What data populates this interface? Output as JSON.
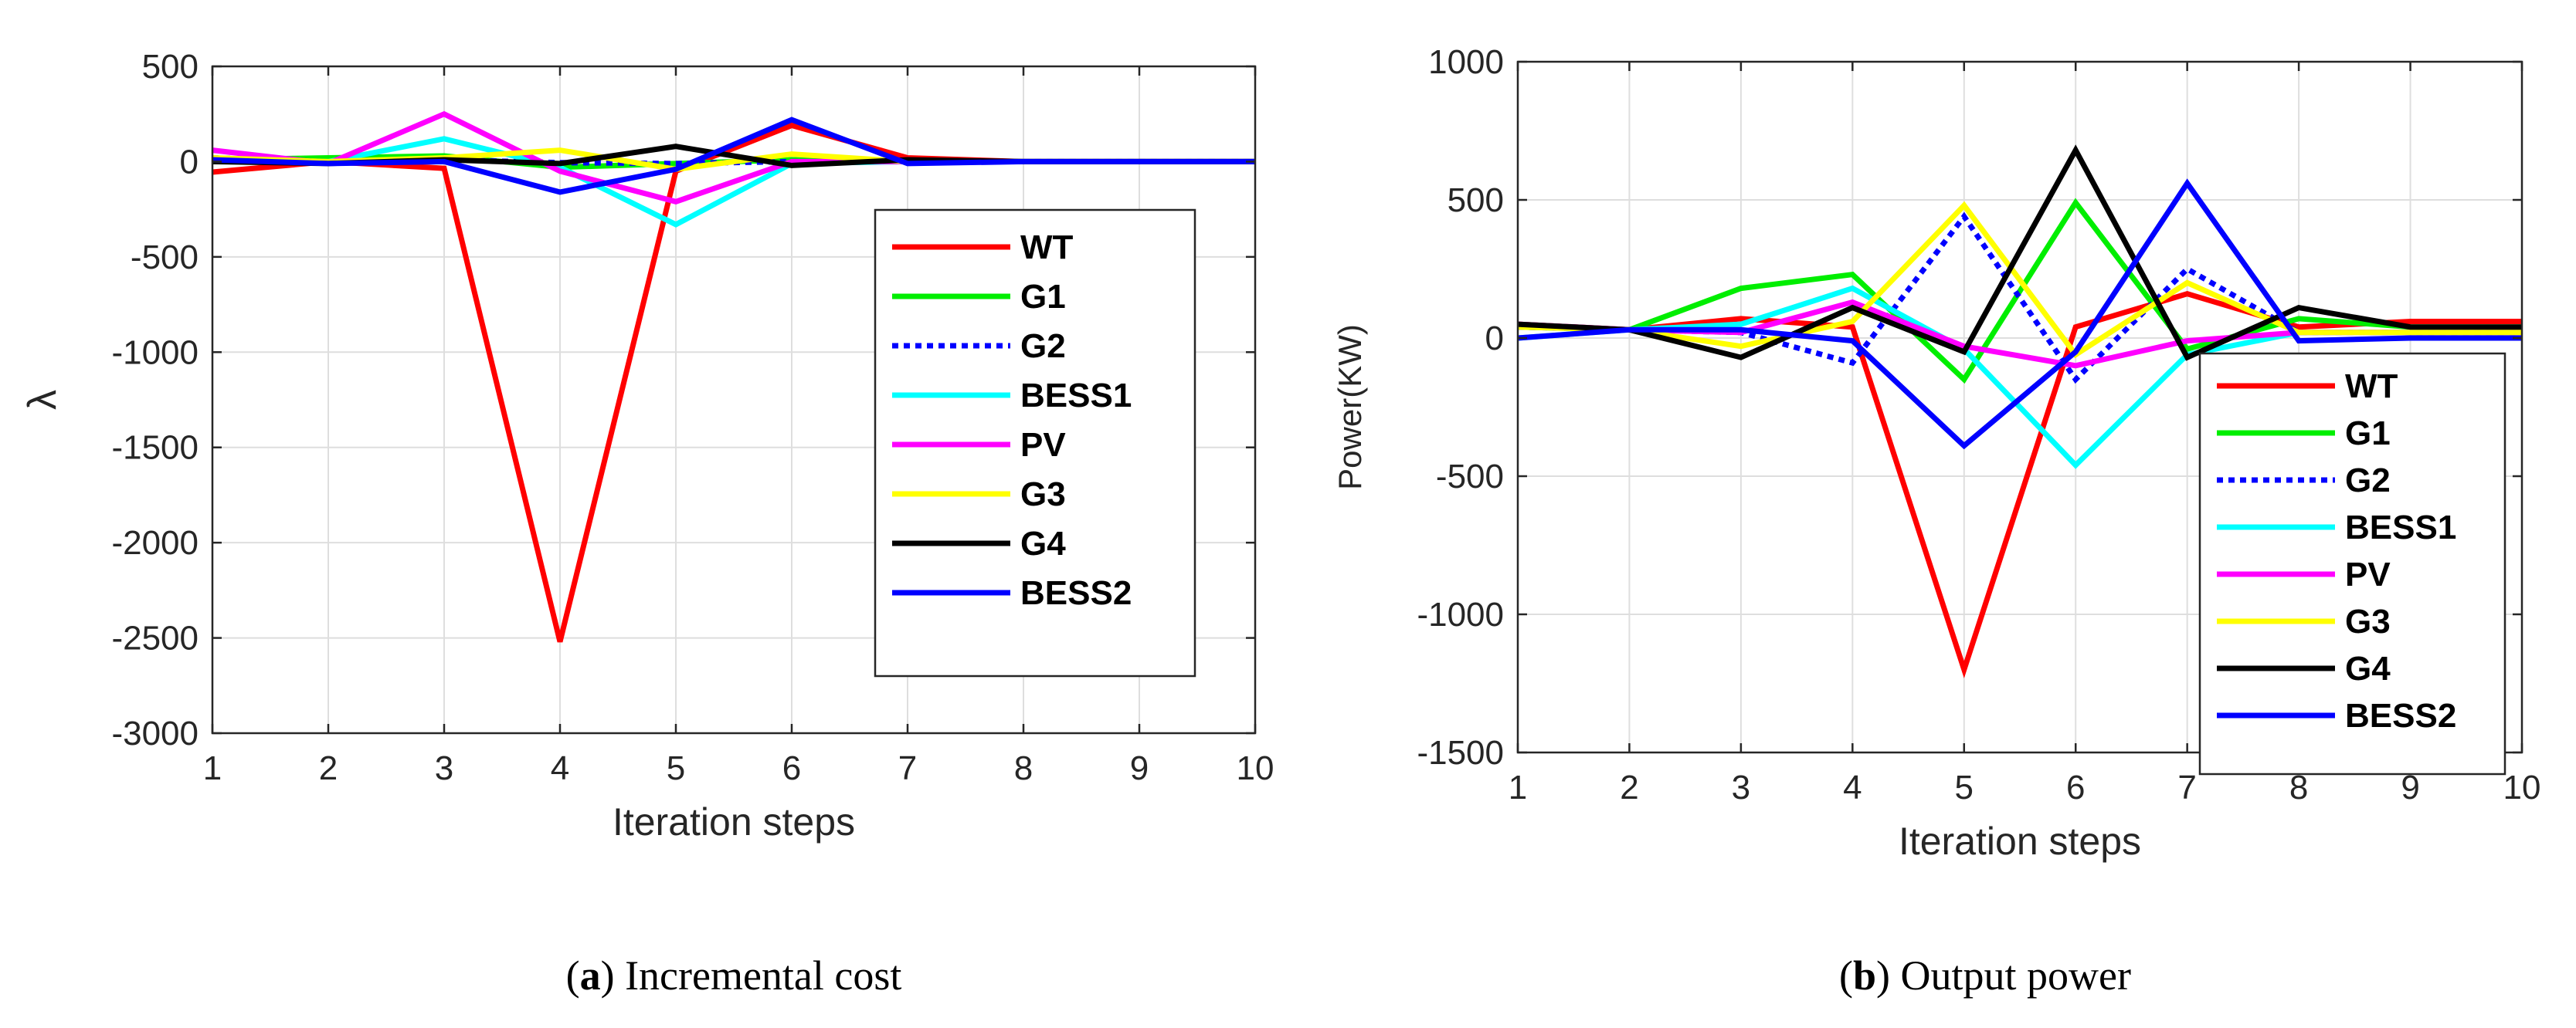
{
  "chart_data": [
    {
      "type": "line",
      "caption": {
        "letter": "a",
        "text": "Incremental cost"
      },
      "title": "",
      "xlabel": "Iteration steps",
      "ylabel": "λ",
      "xlim": [
        1,
        10
      ],
      "ylim": [
        -3000,
        500
      ],
      "xticks": [
        1,
        2,
        3,
        4,
        5,
        6,
        7,
        8,
        9,
        10
      ],
      "yticks": [
        500,
        0,
        -500,
        -1000,
        -1500,
        -2000,
        -2500,
        -3000
      ],
      "grid": true,
      "legend_position": "right",
      "x": [
        1,
        2,
        3,
        4,
        5,
        6,
        7,
        8,
        9,
        10
      ],
      "series": [
        {
          "name": "WT",
          "color": "#ff0000",
          "dashed": false,
          "values": [
            -55,
            0,
            -35,
            -2520,
            -50,
            190,
            20,
            0,
            0,
            0
          ]
        },
        {
          "name": "G1",
          "color": "#00ee00",
          "dashed": false,
          "values": [
            10,
            20,
            30,
            -30,
            -10,
            10,
            0,
            0,
            0,
            0
          ]
        },
        {
          "name": "G2",
          "color": "#0000ff",
          "dashed": true,
          "values": [
            20,
            0,
            10,
            -5,
            -10,
            0,
            0,
            0,
            0,
            0
          ]
        },
        {
          "name": "BESS1",
          "color": "#00ffff",
          "dashed": false,
          "values": [
            0,
            0,
            120,
            -30,
            -330,
            -10,
            0,
            0,
            0,
            0
          ]
        },
        {
          "name": "PV",
          "color": "#ff00ff",
          "dashed": false,
          "values": [
            60,
            -10,
            250,
            -50,
            -210,
            0,
            0,
            0,
            0,
            0
          ]
        },
        {
          "name": "G3",
          "color": "#ffff00",
          "dashed": false,
          "values": [
            20,
            0,
            20,
            60,
            -40,
            40,
            0,
            0,
            0,
            0
          ]
        },
        {
          "name": "G4",
          "color": "#000000",
          "dashed": false,
          "values": [
            0,
            -10,
            10,
            -10,
            80,
            -20,
            10,
            0,
            0,
            0
          ]
        },
        {
          "name": "BESS2",
          "color": "#0000ff",
          "dashed": false,
          "values": [
            10,
            -10,
            0,
            -160,
            -40,
            220,
            -10,
            0,
            0,
            0
          ]
        }
      ]
    },
    {
      "type": "line",
      "caption": {
        "letter": "b",
        "text": "Output power"
      },
      "title": "",
      "xlabel": "Iteration steps",
      "ylabel": "Power(KW)",
      "xlim": [
        1,
        10
      ],
      "ylim": [
        -1500,
        1000
      ],
      "xticks": [
        1,
        2,
        3,
        4,
        5,
        6,
        7,
        8,
        9,
        10
      ],
      "yticks": [
        1000,
        500,
        0,
        -500,
        -1000,
        -1500
      ],
      "grid": true,
      "legend_position": "bottom-right",
      "x": [
        1,
        2,
        3,
        4,
        5,
        6,
        7,
        8,
        9,
        10
      ],
      "series": [
        {
          "name": "WT",
          "color": "#ff0000",
          "dashed": false,
          "values": [
            50,
            30,
            70,
            40,
            -1200,
            40,
            160,
            40,
            60,
            60
          ]
        },
        {
          "name": "G1",
          "color": "#00ee00",
          "dashed": false,
          "values": [
            40,
            30,
            180,
            230,
            -150,
            490,
            -40,
            70,
            40,
            40
          ]
        },
        {
          "name": "G2",
          "color": "#0000ff",
          "dashed": true,
          "values": [
            40,
            30,
            20,
            -90,
            440,
            -150,
            250,
            20,
            20,
            20
          ]
        },
        {
          "name": "BESS1",
          "color": "#00ffff",
          "dashed": false,
          "values": [
            0,
            30,
            50,
            180,
            -40,
            -460,
            -60,
            20,
            20,
            20
          ]
        },
        {
          "name": "PV",
          "color": "#ff00ff",
          "dashed": false,
          "values": [
            50,
            30,
            20,
            130,
            -30,
            -100,
            -10,
            20,
            20,
            20
          ]
        },
        {
          "name": "G3",
          "color": "#ffff00",
          "dashed": false,
          "values": [
            40,
            30,
            -30,
            60,
            480,
            -60,
            200,
            20,
            20,
            20
          ]
        },
        {
          "name": "G4",
          "color": "#000000",
          "dashed": false,
          "values": [
            50,
            30,
            -70,
            110,
            -50,
            680,
            -70,
            110,
            40,
            40
          ]
        },
        {
          "name": "BESS2",
          "color": "#0000ff",
          "dashed": false,
          "values": [
            0,
            30,
            30,
            -10,
            -390,
            -50,
            560,
            -10,
            0,
            0
          ]
        }
      ]
    }
  ]
}
